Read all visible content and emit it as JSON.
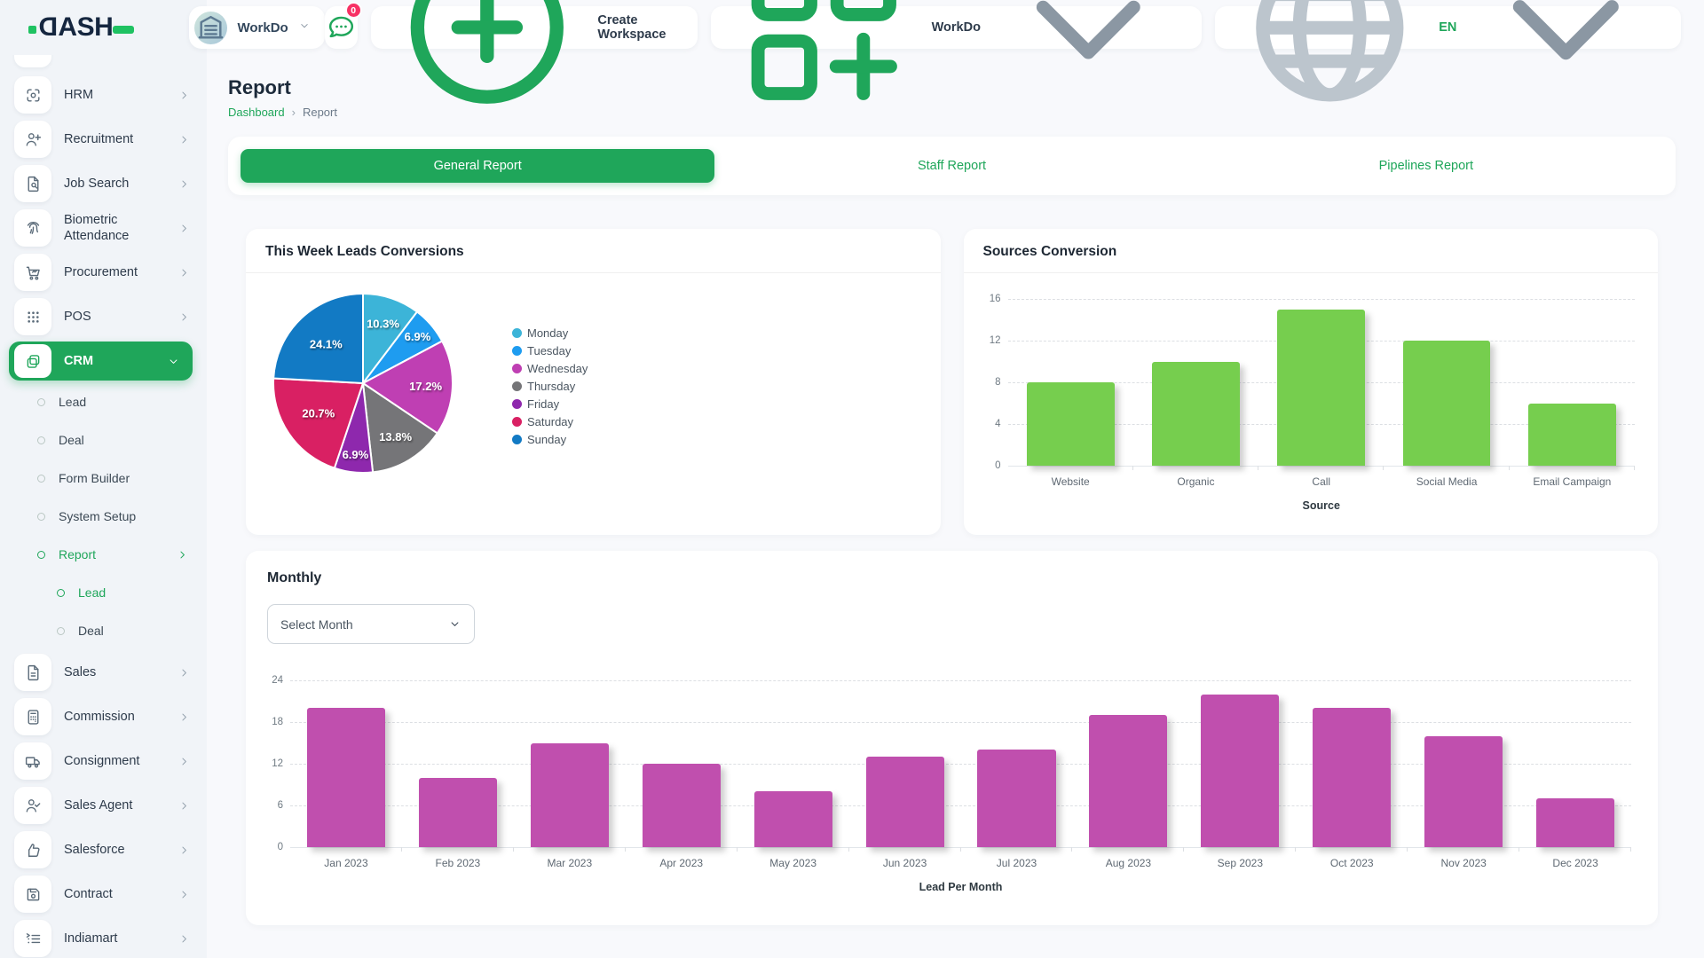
{
  "app": {
    "logo_text": "DASH",
    "primary_green": "#1fa65a",
    "badge_pink": "#f73164"
  },
  "header": {
    "workspace_switcher": {
      "label": "WorkDo"
    },
    "notifications": {
      "badge": "0"
    },
    "create_workspace": {
      "label": "Create Workspace"
    },
    "app_switcher": {
      "label": "WorkDo"
    },
    "language": {
      "label": "EN"
    }
  },
  "page": {
    "title": "Report",
    "breadcrumb": [
      "Dashboard",
      "Report"
    ]
  },
  "tabs": {
    "items": [
      "General Report",
      "Staff Report",
      "Pipelines Report"
    ],
    "active_index": 0
  },
  "sidebar": {
    "items": [
      {
        "label": "HRM",
        "icon": "hrm-icon",
        "level": 0,
        "chevron": "right"
      },
      {
        "label": "Recruitment",
        "icon": "recruitment-icon",
        "level": 0,
        "chevron": "right"
      },
      {
        "label": "Job Search",
        "icon": "job-search-icon",
        "level": 0,
        "chevron": "right"
      },
      {
        "label": "Biometric Attendance",
        "icon": "biometric-attendance-icon",
        "level": 0,
        "chevron": "right"
      },
      {
        "label": "Procurement",
        "icon": "procurement-icon",
        "level": 0,
        "chevron": "right"
      },
      {
        "label": "POS",
        "icon": "pos-icon",
        "level": 0,
        "chevron": "right"
      },
      {
        "label": "CRM",
        "icon": "crm-icon",
        "level": 0,
        "chevron": "down",
        "active": true
      },
      {
        "label": "Lead",
        "level": 1
      },
      {
        "label": "Deal",
        "level": 1
      },
      {
        "label": "Form Builder",
        "level": 1
      },
      {
        "label": "System Setup",
        "level": 1
      },
      {
        "label": "Report",
        "level": 1,
        "active": true,
        "chevron": "right"
      },
      {
        "label": "Lead",
        "level": 2,
        "active": true
      },
      {
        "label": "Deal",
        "level": 2
      },
      {
        "label": "Sales",
        "icon": "sales-icon",
        "level": 0,
        "chevron": "right"
      },
      {
        "label": "Commission",
        "icon": "commission-icon",
        "level": 0,
        "chevron": "right"
      },
      {
        "label": "Consignment",
        "icon": "consignment-icon",
        "level": 0,
        "chevron": "right"
      },
      {
        "label": "Sales Agent",
        "icon": "sales-agent-icon",
        "level": 0,
        "chevron": "right"
      },
      {
        "label": "Salesforce",
        "icon": "salesforce-icon",
        "level": 0,
        "chevron": "right"
      },
      {
        "label": "Contract",
        "icon": "contract-icon",
        "level": 0,
        "chevron": "right"
      },
      {
        "label": "Indiamart",
        "icon": "indiamart-icon",
        "level": 0,
        "chevron": "right"
      }
    ]
  },
  "monthly": {
    "title": "Monthly",
    "select_label": "Select Month"
  },
  "chart_data": [
    {
      "id": "leads_pie",
      "type": "pie",
      "title": "This Week Leads Conversions",
      "labels": [
        "Monday",
        "Tuesday",
        "Wednesday",
        "Thursday",
        "Friday",
        "Saturday",
        "Sunday"
      ],
      "values": [
        10.3,
        6.9,
        17.2,
        13.8,
        6.9,
        20.7,
        24.1
      ],
      "display": [
        "10.3%",
        "6.9%",
        "17.2%",
        "13.8%",
        "6.9%",
        "20.7%",
        "24.1%"
      ],
      "colors": [
        "#3cb4d8",
        "#1e9cf0",
        "#bf3fb3",
        "#757578",
        "#8e28ad",
        "#d92063",
        "#127ac4"
      ],
      "legend_position": "right"
    },
    {
      "id": "sources_bar",
      "type": "bar",
      "title": "Sources Conversion",
      "categories": [
        "Website",
        "Organic",
        "Call",
        "Social Media",
        "Email Campaign"
      ],
      "values": [
        8,
        10,
        15,
        12,
        6
      ],
      "color": "#76ce4e",
      "xlabel": "Source",
      "ylim": [
        0,
        16
      ],
      "yticks": [
        0,
        4,
        8,
        12,
        16
      ],
      "grid": "dashed"
    },
    {
      "id": "monthly_bar",
      "type": "bar",
      "title": "Monthly",
      "categories": [
        "Jan 2023",
        "Feb 2023",
        "Mar 2023",
        "Apr 2023",
        "May 2023",
        "Jun 2023",
        "Jul 2023",
        "Aug 2023",
        "Sep 2023",
        "Oct 2023",
        "Nov 2023",
        "Dec 2023"
      ],
      "values": [
        20,
        10,
        15,
        12,
        8,
        13,
        14,
        19,
        22,
        20,
        16,
        7
      ],
      "color": "#c04fae",
      "xlabel": "Lead Per Month",
      "ylim": [
        0,
        24
      ],
      "yticks": [
        0,
        6,
        12,
        18,
        24
      ],
      "grid": "dashed"
    }
  ]
}
